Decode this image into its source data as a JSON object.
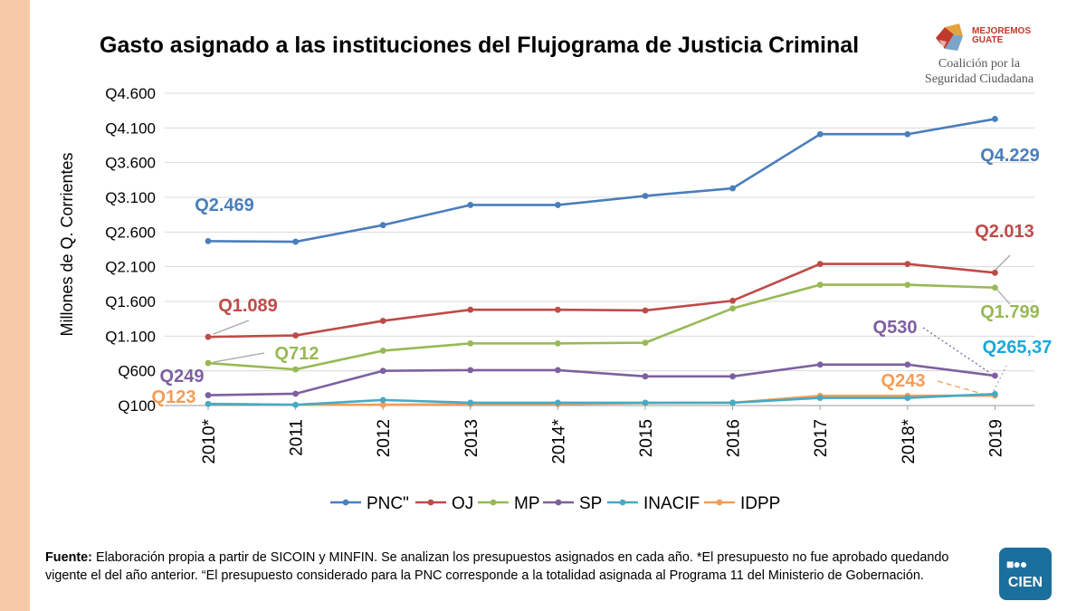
{
  "page": {
    "title": "Gasto asignado a las instituciones del Flujograma de Justicia Criminal",
    "logo": {
      "brand_line1": "MEJOREMOS",
      "brand_line2": "GUATE",
      "coalition_line1": "Coalición por la",
      "coalition_line2": "Seguridad Ciudadana"
    },
    "source_label": "Fuente:",
    "source_text": " Elaboración propia a partir de SICOIN y MINFIN. Se analizan los presupuestos asignados en cada año. *El presupuesto no fue aprobado quedando vigente el del año anterior. “El presupuesto considerado para la PNC corresponde a la totalidad asignada al Programa 11 del Ministerio de Gobernación.",
    "cien_logo_text": "CIEN",
    "cien_logo_dots": "■●●"
  },
  "chart_data": {
    "type": "line",
    "title": "Gasto asignado a las instituciones del Flujograma de Justicia Criminal",
    "xlabel": "",
    "ylabel": "Millones de Q. Corrientes",
    "ylim": [
      100,
      4600
    ],
    "yticks": [
      100,
      600,
      1100,
      1600,
      2100,
      2600,
      3100,
      3600,
      4100,
      4600
    ],
    "ytick_labels": [
      "Q100",
      "Q600",
      "Q1.100",
      "Q1.600",
      "Q2.100",
      "Q2.600",
      "Q3.100",
      "Q3.600",
      "Q4.100",
      "Q4.600"
    ],
    "categories": [
      "2010*",
      "2011",
      "2012",
      "2013",
      "2014*",
      "2015",
      "2016",
      "2017",
      "2018*",
      "2019"
    ],
    "grid": true,
    "legend_position": "bottom",
    "series": [
      {
        "name": "PNC\"",
        "color": "#4a7ebb",
        "values": [
          2469,
          2460,
          2700,
          2990,
          2990,
          3120,
          3230,
          4010,
          4010,
          4229
        ]
      },
      {
        "name": "OJ",
        "color": "#be4b48",
        "values": [
          1089,
          1110,
          1320,
          1480,
          1480,
          1470,
          1610,
          2140,
          2140,
          2013
        ]
      },
      {
        "name": "MP",
        "color": "#98b954",
        "values": [
          712,
          620,
          890,
          995,
          995,
          1005,
          1500,
          1840,
          1840,
          1799
        ]
      },
      {
        "name": "SP",
        "color": "#7d60a0",
        "values": [
          249,
          270,
          600,
          610,
          610,
          520,
          520,
          690,
          690,
          530
        ]
      },
      {
        "name": "INACIF",
        "color": "#46aac5",
        "values": [
          123,
          110,
          180,
          140,
          140,
          140,
          140,
          210,
          210,
          265.37
        ]
      },
      {
        "name": "IDPP",
        "color": "#f59d56",
        "values": [
          123,
          110,
          110,
          120,
          120,
          135,
          140,
          240,
          240,
          243
        ]
      }
    ],
    "annotations": [
      {
        "text": "Q2.469",
        "color": "#4a7ebb"
      },
      {
        "text": "Q4.229",
        "color": "#4a7ebb"
      },
      {
        "text": "Q1.089",
        "color": "#be4b48"
      },
      {
        "text": "Q2.013",
        "color": "#be4b48"
      },
      {
        "text": "Q712",
        "color": "#98b954"
      },
      {
        "text": "Q1.799",
        "color": "#98b954"
      },
      {
        "text": "Q249",
        "color": "#7d60a0"
      },
      {
        "text": "Q530",
        "color": "#7d60a0"
      },
      {
        "text": "Q265,37",
        "color": "#17a9db"
      },
      {
        "text": "Q123",
        "color": "#f59d56"
      },
      {
        "text": "Q243",
        "color": "#f59d56"
      }
    ]
  }
}
